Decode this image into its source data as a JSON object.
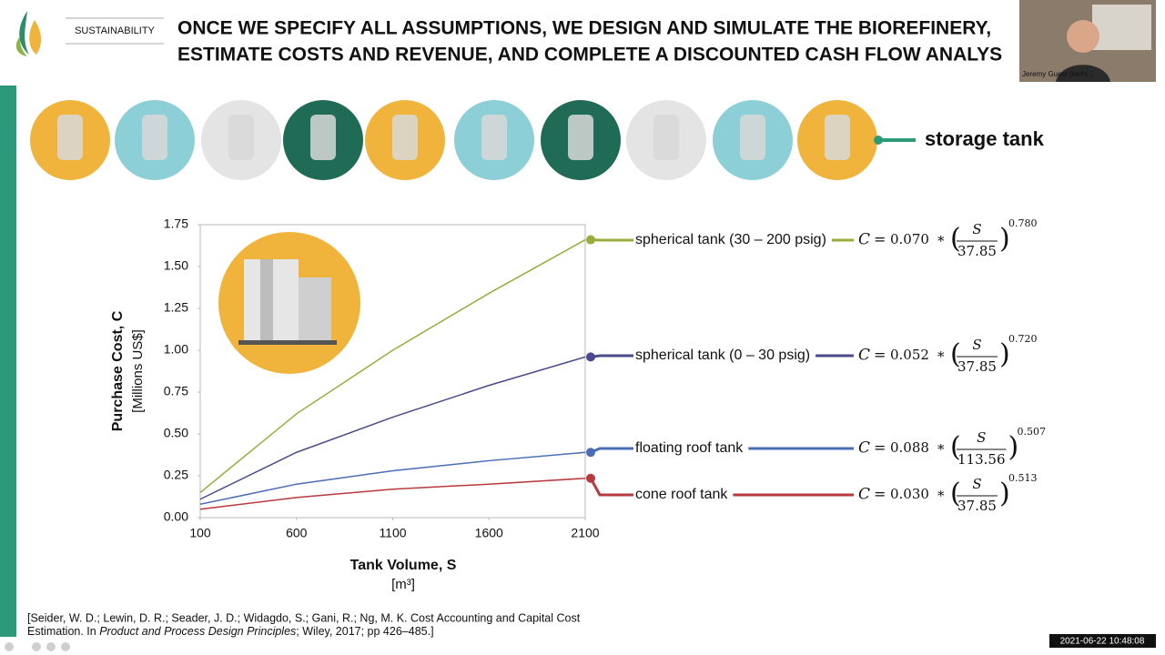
{
  "header": {
    "section": "SUSTAINABILITY",
    "title_lines": [
      "ONCE WE SPECIFY ALL ASSUMPTIONS, WE DESIGN AND SIMULATE THE BIOREFINERY,",
      "ESTIMATE COSTS AND REVENUE, AND COMPLETE A DISCOUNTED CASH FLOW ANALYS"
    ]
  },
  "icon_row": {
    "selected_label": "storage tank"
  },
  "webcam": {
    "name": "Jeremy Guest (he/hi..."
  },
  "timestamp": "2021-06-22 10:48:08",
  "citation": {
    "line1": "[Seider, W. D.; Lewin, D. R.; Seader, J. D.; Widagdo, S.; Gani, R.; Ng, M. K. Cost Accounting and Capital Cost",
    "line2_before": "Estimation. In ",
    "line2_italic": "Product and Process Design Principles",
    "line2_after": "; Wiley, 2017; pp 426–485.]"
  },
  "chart_data": {
    "type": "line",
    "xlabel": "Tank Volume, S",
    "xunit": "[m³]",
    "ylabel": "Purchase Cost, C",
    "yunit": "[Millions US$]",
    "x": [
      100,
      600,
      1100,
      1600,
      2100
    ],
    "xlim": [
      100,
      2100
    ],
    "xticks": [
      100,
      600,
      1100,
      1600,
      2100
    ],
    "ylim": [
      0,
      1.75
    ],
    "yticks": [
      {
        "value": 0,
        "label": "0.00"
      },
      {
        "value": 0.25,
        "label": "0.25"
      },
      {
        "value": 0.5,
        "label": "0.50"
      },
      {
        "value": 0.75,
        "label": "0.75"
      },
      {
        "value": 1,
        "label": "1.00"
      },
      {
        "value": 1.25,
        "label": "1.25"
      },
      {
        "value": 1.5,
        "label": "1.50"
      },
      {
        "value": 1.75,
        "label": "1.75"
      }
    ],
    "equation_symbols": {
      "lhs": "C",
      "eq": "=",
      "op": "*",
      "var": "S"
    },
    "series": [
      {
        "name": "spherical tank (30 – 200 psig)",
        "color": "#9aab3c",
        "values": [
          0.15,
          0.62,
          1.0,
          1.34,
          1.66
        ],
        "equation": {
          "coef": "0.070",
          "base": "37.85",
          "exp": "0.780"
        }
      },
      {
        "name": "spherical tank (0 – 30 psig)",
        "color": "#4b4a8c",
        "values": [
          0.11,
          0.39,
          0.6,
          0.79,
          0.96
        ],
        "equation": {
          "coef": "0.052",
          "base": "37.85",
          "exp": "0.720"
        }
      },
      {
        "name": "floating roof tank",
        "color": "#4a6db5",
        "values": [
          0.08,
          0.2,
          0.28,
          0.34,
          0.39
        ],
        "equation": {
          "coef": "0.088",
          "base": "113.56",
          "exp": "0.507"
        }
      },
      {
        "name": "cone roof tank",
        "color": "#b73a3f",
        "values": [
          0.05,
          0.12,
          0.17,
          0.2,
          0.235
        ],
        "equation": {
          "coef": "0.030",
          "base": "37.85",
          "exp": "0.513"
        }
      }
    ]
  }
}
